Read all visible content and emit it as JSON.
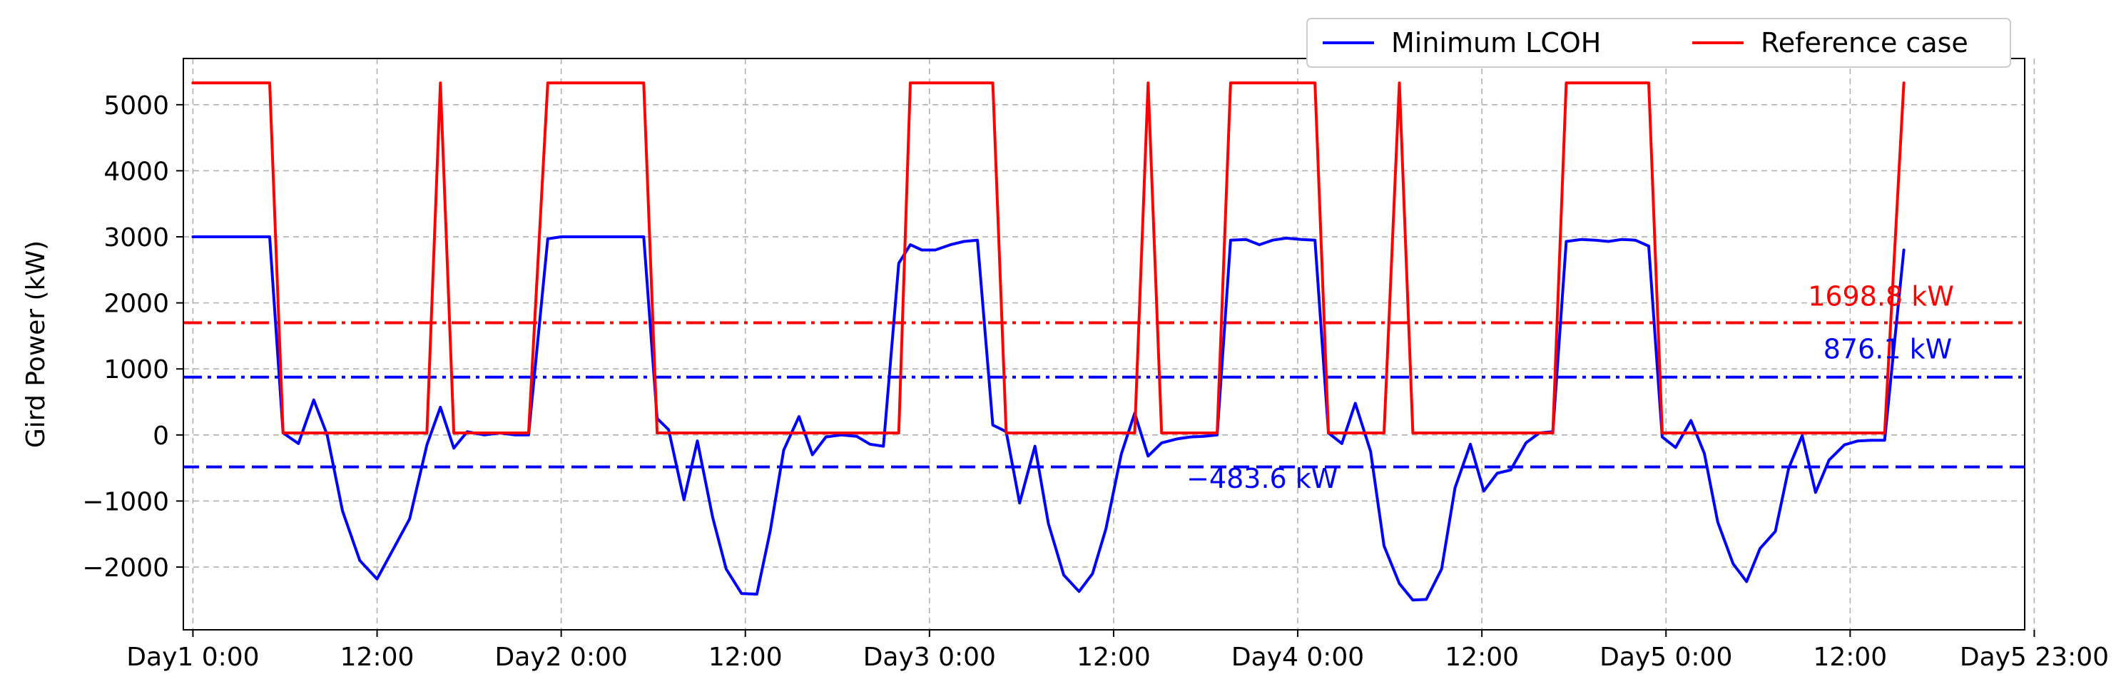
{
  "chart_data": {
    "type": "line",
    "title": "",
    "xlabel": "",
    "ylabel": "Gird Power (kW)",
    "xlim": [
      -0.5,
      95.5
    ],
    "ylim": [
      -2950,
      5700
    ],
    "grid": true,
    "legend": {
      "position": "top-right",
      "columns": 2
    },
    "x_ticks": [
      {
        "x": 0,
        "label": "Day1 0:00"
      },
      {
        "x": 9.6,
        "label": "12:00"
      },
      {
        "x": 19.2,
        "label": "Day2 0:00"
      },
      {
        "x": 28.8,
        "label": "12:00"
      },
      {
        "x": 38.4,
        "label": "Day3 0:00"
      },
      {
        "x": 48,
        "label": "12:00"
      },
      {
        "x": 57.6,
        "label": "Day4 0:00"
      },
      {
        "x": 67.2,
        "label": "12:00"
      },
      {
        "x": 76.8,
        "label": "Day5 0:00"
      },
      {
        "x": 86.4,
        "label": "12:00"
      },
      {
        "x": 96,
        "label": "Day5 23:00"
      }
    ],
    "y_ticks": [
      {
        "y": 5000,
        "label": "5000"
      },
      {
        "y": 4000,
        "label": "4000"
      },
      {
        "y": 3000,
        "label": "3000"
      },
      {
        "y": 2000,
        "label": "2000"
      },
      {
        "y": 1000,
        "label": "1000"
      },
      {
        "y": 0,
        "label": "0"
      },
      {
        "y": -1000,
        "label": "−1000"
      },
      {
        "y": -2000,
        "label": "−2000"
      }
    ],
    "series": [
      {
        "name": "Minimum LCOH",
        "color": "#0000ff",
        "points": [
          [
            0,
            3000
          ],
          [
            4,
            3000
          ],
          [
            4.7,
            30
          ],
          [
            5.5,
            -130
          ],
          [
            6.3,
            530
          ],
          [
            7,
            0
          ],
          [
            7.8,
            -1150
          ],
          [
            8.7,
            -1900
          ],
          [
            9.6,
            -2180
          ],
          [
            10.5,
            -1700
          ],
          [
            11.3,
            -1270
          ],
          [
            12.2,
            -150
          ],
          [
            12.9,
            420
          ],
          [
            13.6,
            -200
          ],
          [
            14.3,
            50
          ],
          [
            15.2,
            0
          ],
          [
            16,
            30
          ],
          [
            16.8,
            0
          ],
          [
            17.5,
            0
          ],
          [
            18.5,
            2970
          ],
          [
            19.2,
            3000
          ],
          [
            23.5,
            3000
          ],
          [
            24.2,
            250
          ],
          [
            24.8,
            80
          ],
          [
            25.6,
            -980
          ],
          [
            26.3,
            -90
          ],
          [
            27.1,
            -1250
          ],
          [
            27.8,
            -2030
          ],
          [
            28.6,
            -2400
          ],
          [
            29.4,
            -2410
          ],
          [
            30.1,
            -1450
          ],
          [
            30.8,
            -230
          ],
          [
            31.6,
            280
          ],
          [
            32.3,
            -300
          ],
          [
            33,
            -30
          ],
          [
            33.8,
            0
          ],
          [
            34.6,
            -20
          ],
          [
            35.3,
            -140
          ],
          [
            36,
            -170
          ],
          [
            36.8,
            2600
          ],
          [
            37.4,
            2880
          ],
          [
            38,
            2800
          ],
          [
            38.7,
            2800
          ],
          [
            39.5,
            2880
          ],
          [
            40.2,
            2930
          ],
          [
            40.9,
            2950
          ],
          [
            41.7,
            150
          ],
          [
            42.4,
            50
          ],
          [
            43.1,
            -1030
          ],
          [
            43.9,
            -170
          ],
          [
            44.6,
            -1340
          ],
          [
            45.4,
            -2120
          ],
          [
            46.2,
            -2370
          ],
          [
            46.9,
            -2100
          ],
          [
            47.6,
            -1420
          ],
          [
            48.4,
            -290
          ],
          [
            49.1,
            330
          ],
          [
            49.8,
            -320
          ],
          [
            50.5,
            -120
          ],
          [
            51.3,
            -60
          ],
          [
            52,
            -30
          ],
          [
            52.7,
            -20
          ],
          [
            53.4,
            0
          ],
          [
            54.1,
            2950
          ],
          [
            54.9,
            2960
          ],
          [
            55.6,
            2880
          ],
          [
            56.3,
            2950
          ],
          [
            57,
            2980
          ],
          [
            57.8,
            2960
          ],
          [
            58.5,
            2950
          ],
          [
            59.2,
            30
          ],
          [
            59.9,
            -130
          ],
          [
            60.6,
            480
          ],
          [
            61.4,
            -250
          ],
          [
            62.1,
            -1680
          ],
          [
            62.9,
            -2250
          ],
          [
            63.6,
            -2500
          ],
          [
            64.3,
            -2490
          ],
          [
            65.1,
            -2030
          ],
          [
            65.8,
            -800
          ],
          [
            66.6,
            -140
          ],
          [
            67.3,
            -850
          ],
          [
            68,
            -580
          ],
          [
            68.7,
            -530
          ],
          [
            69.5,
            -120
          ],
          [
            70.2,
            30
          ],
          [
            70.9,
            50
          ],
          [
            71.6,
            2930
          ],
          [
            72.4,
            2960
          ],
          [
            73.1,
            2950
          ],
          [
            73.8,
            2930
          ],
          [
            74.5,
            2960
          ],
          [
            75.2,
            2950
          ],
          [
            75.9,
            2860
          ],
          [
            76.6,
            -30
          ],
          [
            77.3,
            -190
          ],
          [
            78.1,
            220
          ],
          [
            78.8,
            -280
          ],
          [
            79.5,
            -1320
          ],
          [
            80.3,
            -1950
          ],
          [
            81,
            -2220
          ],
          [
            81.7,
            -1720
          ],
          [
            82.5,
            -1460
          ],
          [
            83.2,
            -500
          ],
          [
            83.9,
            -10
          ],
          [
            84.6,
            -870
          ],
          [
            85.3,
            -380
          ],
          [
            86.1,
            -150
          ],
          [
            86.8,
            -90
          ],
          [
            87.5,
            -80
          ],
          [
            88.2,
            -80
          ],
          [
            89.2,
            2800
          ]
        ]
      },
      {
        "name": "Reference case",
        "color": "#ff0000",
        "points": [
          [
            0,
            5330
          ],
          [
            4,
            5330
          ],
          [
            4.7,
            30
          ],
          [
            12.2,
            30
          ],
          [
            12.9,
            5330
          ],
          [
            13.6,
            30
          ],
          [
            17.5,
            30
          ],
          [
            18.5,
            5330
          ],
          [
            23.5,
            5330
          ],
          [
            24.2,
            30
          ],
          [
            36.8,
            30
          ],
          [
            37.4,
            5330
          ],
          [
            41.7,
            5330
          ],
          [
            42.4,
            30
          ],
          [
            49.1,
            30
          ],
          [
            49.8,
            5330
          ],
          [
            50.5,
            30
          ],
          [
            53.4,
            30
          ],
          [
            54.1,
            5330
          ],
          [
            58.5,
            5330
          ],
          [
            59.2,
            30
          ],
          [
            62.1,
            30
          ],
          [
            62.9,
            5330
          ],
          [
            63.6,
            30
          ],
          [
            70.9,
            30
          ],
          [
            71.6,
            5330
          ],
          [
            75.9,
            5330
          ],
          [
            76.6,
            30
          ],
          [
            88.2,
            30
          ],
          [
            89.2,
            5330
          ]
        ]
      }
    ],
    "reference_lines": [
      {
        "y": 1698.8,
        "label": "1698.8 kW",
        "color": "#ff0000",
        "style": "dashdot",
        "label_x": 84.2,
        "label_y": 1960
      },
      {
        "y": 876.1,
        "label": "876.1 kW",
        "color": "#0000ff",
        "style": "dashdot",
        "label_x": 85.0,
        "label_y": 1160
      },
      {
        "y": -483.6,
        "label": "−483.6 kW",
        "color": "#0000ff",
        "style": "dashed",
        "label_x": 51.8,
        "label_y": -800
      }
    ]
  }
}
